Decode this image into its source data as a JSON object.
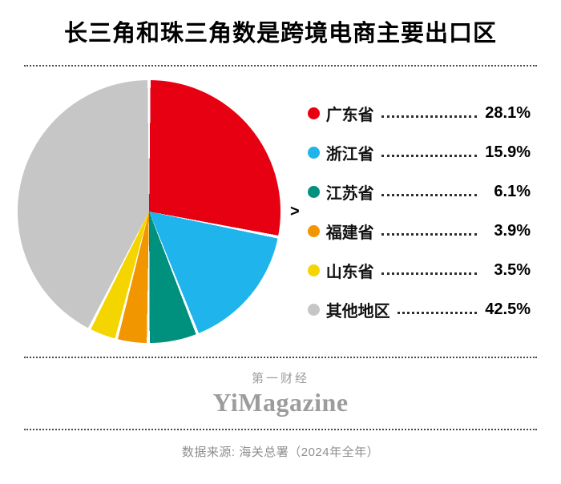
{
  "title": "长三角和珠三角数是跨境电商主要出口区",
  "arrow_glyph": ">",
  "chart_data": {
    "type": "pie",
    "title": "长三角和珠三角数是跨境电商主要出口区",
    "categories": [
      "广东省",
      "浙江省",
      "江苏省",
      "福建省",
      "山东省",
      "其他地区"
    ],
    "values": [
      28.1,
      15.9,
      6.1,
      3.9,
      3.5,
      42.5
    ],
    "value_labels": [
      "28.1%",
      "15.9%",
      "6.1%",
      "3.9%",
      "3.5%",
      "42.5%"
    ],
    "colors": [
      "#e60012",
      "#1fb5ec",
      "#00917e",
      "#f29600",
      "#f5d500",
      "#c6c6c6"
    ],
    "start_angle_deg": 0,
    "direction": "clockwise",
    "legend_position": "right",
    "slice_gap_color": "#ffffff"
  },
  "footer": {
    "brand_cn": "第一财经",
    "brand_en": "YiMagazine",
    "source": "数据来源: 海关总署（2024年全年）"
  }
}
